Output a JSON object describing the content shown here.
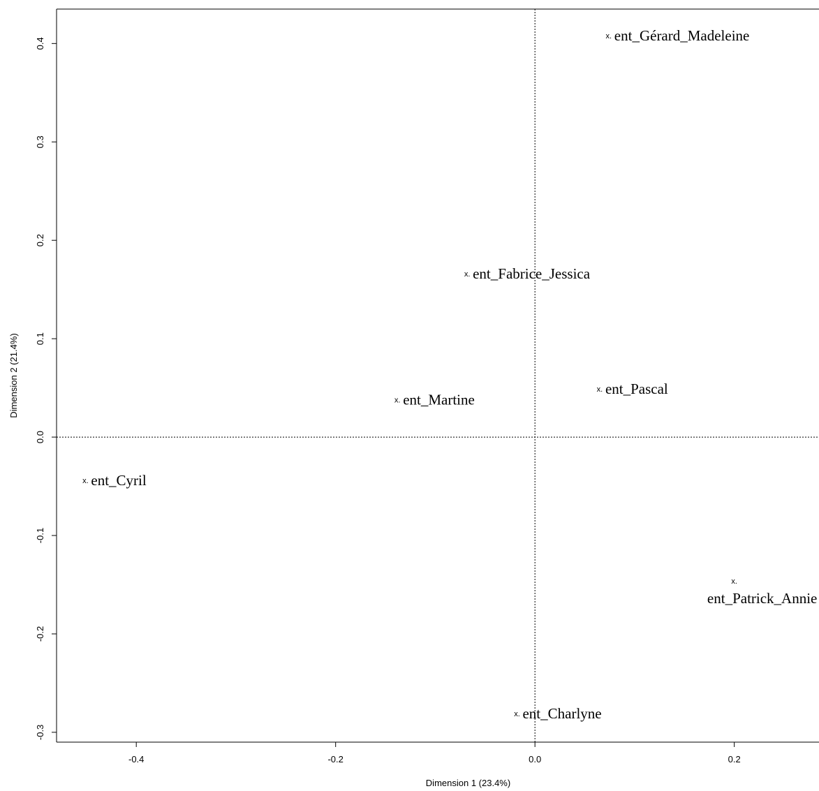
{
  "chart_data": {
    "type": "scatter",
    "title": "",
    "xlabel": "Dimension 1 (23.4%)",
    "ylabel": "Dimension 2 (21.4%)",
    "xlim": [
      -0.48,
      0.285
    ],
    "ylim": [
      -0.31,
      0.435
    ],
    "x_ticks": [
      "-0.4",
      "-0.2",
      "0.0",
      "0.2"
    ],
    "x_tick_values": [
      -0.4,
      -0.2,
      0.0,
      0.2
    ],
    "y_ticks": [
      "-0.3",
      "-0.2",
      "-0.1",
      "0.0",
      "0.1",
      "0.2",
      "0.3",
      "0.4"
    ],
    "y_tick_values": [
      -0.3,
      -0.2,
      -0.1,
      0.0,
      0.1,
      0.2,
      0.3,
      0.4
    ],
    "reference_lines": {
      "x": 0.0,
      "y": 0.0,
      "style": "dotted"
    },
    "marker_symbol": "x.",
    "grid": false,
    "points": [
      {
        "label": "ent_Gérard_Madeleine",
        "x": 0.074,
        "y": 0.408,
        "label_position": "right"
      },
      {
        "label": "ent_Fabrice_Jessica",
        "x": -0.068,
        "y": 0.166,
        "label_position": "right"
      },
      {
        "label": "ent_Pascal",
        "x": 0.065,
        "y": 0.049,
        "label_position": "right"
      },
      {
        "label": "ent_Martine",
        "x": -0.138,
        "y": 0.038,
        "label_position": "right"
      },
      {
        "label": "ent_Cyril",
        "x": -0.451,
        "y": -0.044,
        "label_position": "right"
      },
      {
        "label": "ent_Patrick_Annie",
        "x": 0.2,
        "y": -0.146,
        "label_position": "below"
      },
      {
        "label": "ent_Charlyne",
        "x": -0.018,
        "y": -0.281,
        "label_position": "right"
      }
    ]
  }
}
